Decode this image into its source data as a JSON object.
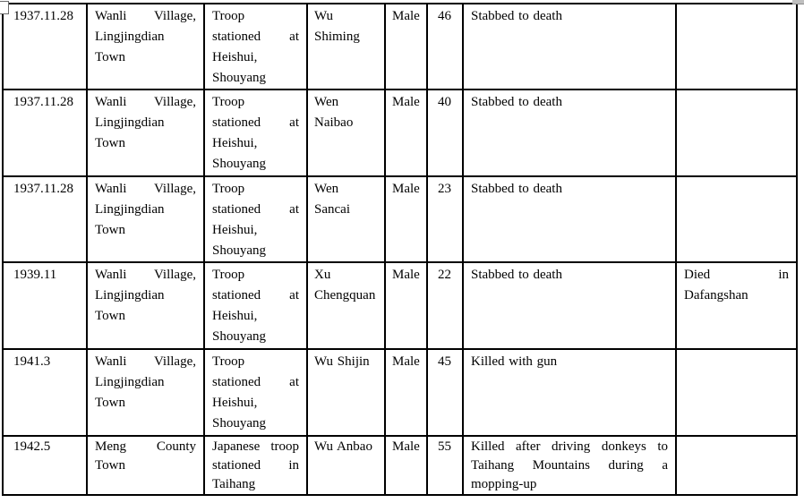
{
  "colors": {
    "page_background": "#ffffff",
    "table_border": "#000000",
    "text": "#000000",
    "scrollbar_fragment": "#bfbfbf"
  },
  "artifacts": {
    "top_left": "table-handle-fragment",
    "top_right": "scrollbar-fragment"
  },
  "table": {
    "column_keys": [
      "date",
      "place",
      "troop",
      "name",
      "gender",
      "age",
      "cause",
      "notes"
    ],
    "rows": [
      {
        "date": "1937.11.28",
        "place": [
          {
            "t": "Wanli Village,",
            "j": true
          },
          {
            "t": "Lingjingdian"
          },
          {
            "t": "Town"
          }
        ],
        "troop": [
          {
            "t": "Troop"
          },
          {
            "t": "stationed at",
            "j": true
          },
          {
            "t": "Heishui,"
          },
          {
            "t": "Shouyang"
          }
        ],
        "name": [
          {
            "t": "Wu"
          },
          {
            "t": "Shiming"
          }
        ],
        "gender": "Male",
        "age": "46",
        "cause": [
          {
            "t": "Stabbed to death"
          }
        ],
        "notes": []
      },
      {
        "date": "1937.11.28",
        "place": [
          {
            "t": "Wanli Village,",
            "j": true
          },
          {
            "t": "Lingjingdian"
          },
          {
            "t": "Town"
          }
        ],
        "troop": [
          {
            "t": "Troop"
          },
          {
            "t": "stationed at",
            "j": true
          },
          {
            "t": "Heishui,"
          },
          {
            "t": "Shouyang"
          }
        ],
        "name": [
          {
            "t": "Wen"
          },
          {
            "t": "Naibao"
          }
        ],
        "gender": "Male",
        "age": "40",
        "cause": [
          {
            "t": "Stabbed to death"
          }
        ],
        "notes": []
      },
      {
        "date": "1937.11.28",
        "place": [
          {
            "t": "Wanli Village,",
            "j": true
          },
          {
            "t": "Lingjingdian"
          },
          {
            "t": "Town"
          }
        ],
        "troop": [
          {
            "t": "Troop"
          },
          {
            "t": "stationed at",
            "j": true
          },
          {
            "t": "Heishui,"
          },
          {
            "t": "Shouyang"
          }
        ],
        "name": [
          {
            "t": "Wen"
          },
          {
            "t": "Sancai"
          }
        ],
        "gender": "Male",
        "age": "23",
        "cause": [
          {
            "t": "Stabbed to death"
          }
        ],
        "notes": []
      },
      {
        "date": "1939.11",
        "place": [
          {
            "t": "Wanli Village,",
            "j": true
          },
          {
            "t": "Lingjingdian"
          },
          {
            "t": "Town"
          }
        ],
        "troop": [
          {
            "t": "Troop"
          },
          {
            "t": "stationed at",
            "j": true
          },
          {
            "t": "Heishui,"
          },
          {
            "t": "Shouyang"
          }
        ],
        "name": [
          {
            "t": "Xu"
          },
          {
            "t": "Chengquan"
          }
        ],
        "gender": "Male",
        "age": "22",
        "cause": [
          {
            "t": "Stabbed to death"
          }
        ],
        "notes": [
          {
            "t": "Died in",
            "j": true
          },
          {
            "t": "Dafangshan"
          }
        ]
      },
      {
        "date": "1941.3",
        "place": [
          {
            "t": "Wanli Village,",
            "j": true
          },
          {
            "t": "Lingjingdian"
          },
          {
            "t": "Town"
          }
        ],
        "troop": [
          {
            "t": "Troop"
          },
          {
            "t": "stationed at",
            "j": true
          },
          {
            "t": "Heishui,"
          },
          {
            "t": "Shouyang"
          }
        ],
        "name": [
          {
            "t": "Wu Shijin"
          }
        ],
        "gender": "Male",
        "age": "45",
        "cause": [
          {
            "t": "Killed with gun"
          }
        ],
        "notes": []
      },
      {
        "date": "1942.5",
        "place": [
          {
            "t": "Meng County",
            "j": true
          },
          {
            "t": "Town"
          }
        ],
        "troop": [
          {
            "t": "Japanese troop",
            "j": true
          },
          {
            "t": "stationed in",
            "j": true
          },
          {
            "t": "Taihang"
          }
        ],
        "name": [
          {
            "t": "Wu Anbao"
          }
        ],
        "gender": "Male",
        "age": "55",
        "cause": [
          {
            "t": "Killed after driving donkeys to",
            "j": true
          },
          {
            "t": "Taihang Mountains during a",
            "j": true
          },
          {
            "t": "mopping-up"
          }
        ],
        "notes": []
      }
    ]
  }
}
